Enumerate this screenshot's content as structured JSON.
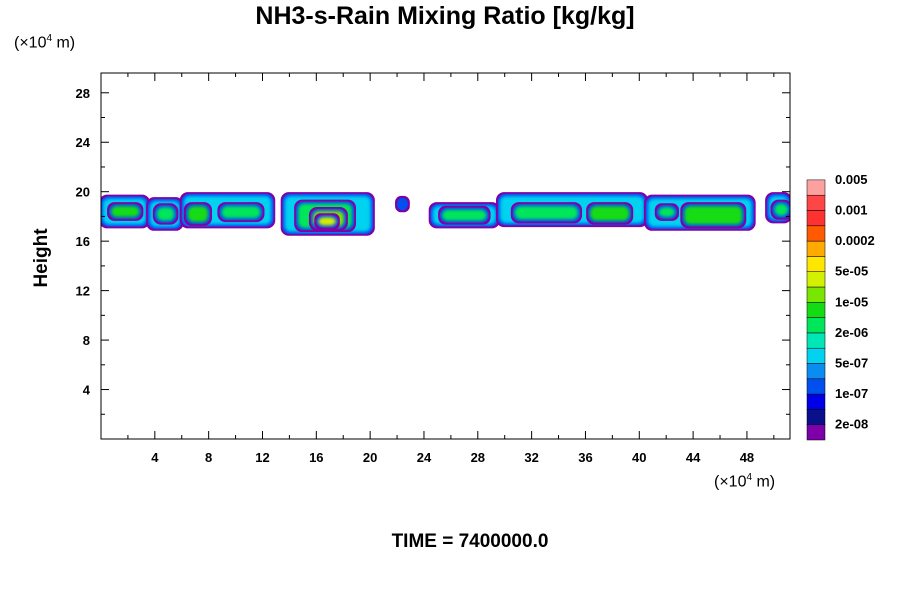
{
  "chart_data": {
    "type": "heatmap",
    "title": "NH3-s-Rain Mixing Ratio [kg/kg]",
    "ylabel": "Height",
    "x_unit_label": {
      "prefix": "(×10",
      "exp": "4",
      "suffix": " m)"
    },
    "y_unit_label": {
      "prefix": "(×10",
      "exp": "4",
      "suffix": " m)"
    },
    "xlim": [
      0,
      51.2
    ],
    "ylim": [
      0,
      29.6
    ],
    "x_ticks": [
      4,
      8,
      12,
      16,
      20,
      24,
      28,
      32,
      36,
      40,
      44,
      48
    ],
    "y_ticks": [
      4,
      8,
      12,
      16,
      20,
      24,
      28
    ],
    "footer": "TIME = 7400000.0",
    "colorbar": {
      "colors": [
        "#7d00a8",
        "#0a0f8c",
        "#0000e6",
        "#0050f0",
        "#0a8cf0",
        "#00d2f0",
        "#00e6b4",
        "#00e65a",
        "#14dc14",
        "#78e600",
        "#d2f000",
        "#ffe600",
        "#ffaa00",
        "#ff5a00",
        "#ff3232",
        "#ff4646",
        "#ffa0a0"
      ],
      "labels": [
        "2e-08",
        "1e-07",
        "5e-07",
        "2e-06",
        "1e-05",
        "5e-05",
        "0.0002",
        "0.001",
        "0.005"
      ]
    },
    "regions": [
      {
        "x0": 0,
        "x1": 3.5,
        "y0": 17.2,
        "y1": 19.6,
        "level": 5
      },
      {
        "x0": 0.6,
        "x1": 3.0,
        "y0": 17.8,
        "y1": 19.0,
        "level": 8
      },
      {
        "x0": 3.5,
        "x1": 6.0,
        "y0": 17.0,
        "y1": 19.4,
        "level": 5
      },
      {
        "x0": 4.0,
        "x1": 5.6,
        "y0": 17.5,
        "y1": 18.9,
        "level": 7
      },
      {
        "x0": 6.0,
        "x1": 12.8,
        "y0": 17.2,
        "y1": 19.8,
        "level": 5
      },
      {
        "x0": 6.3,
        "x1": 8.1,
        "y0": 17.4,
        "y1": 19.0,
        "level": 8
      },
      {
        "x0": 8.8,
        "x1": 12.0,
        "y0": 17.7,
        "y1": 19.0,
        "level": 7
      },
      {
        "x0": 13.5,
        "x1": 20.2,
        "y0": 16.6,
        "y1": 19.8,
        "level": 5
      },
      {
        "x0": 14.5,
        "x1": 18.8,
        "y0": 16.9,
        "y1": 19.2,
        "level": 7
      },
      {
        "x0": 15.6,
        "x1": 18.2,
        "y0": 17.0,
        "y1": 18.6,
        "level": 9
      },
      {
        "x0": 16.0,
        "x1": 17.6,
        "y0": 17.1,
        "y1": 18.1,
        "level": 10
      },
      {
        "x0": 22.0,
        "x1": 22.8,
        "y0": 18.5,
        "y1": 19.5,
        "level": 3
      },
      {
        "x0": 24.5,
        "x1": 29.5,
        "y0": 17.2,
        "y1": 19.0,
        "level": 5
      },
      {
        "x0": 25.2,
        "x1": 28.8,
        "y0": 17.5,
        "y1": 18.7,
        "level": 7
      },
      {
        "x0": 29.5,
        "x1": 40.5,
        "y0": 17.3,
        "y1": 19.8,
        "level": 5
      },
      {
        "x0": 30.6,
        "x1": 35.6,
        "y0": 17.6,
        "y1": 19.0,
        "level": 7
      },
      {
        "x0": 36.2,
        "x1": 39.4,
        "y0": 17.5,
        "y1": 19.0,
        "level": 8
      },
      {
        "x0": 40.5,
        "x1": 48.5,
        "y0": 17.0,
        "y1": 19.6,
        "level": 5
      },
      {
        "x0": 41.3,
        "x1": 42.8,
        "y0": 17.8,
        "y1": 18.9,
        "level": 7
      },
      {
        "x0": 43.2,
        "x1": 47.8,
        "y0": 17.2,
        "y1": 19.0,
        "level": 8
      },
      {
        "x0": 49.5,
        "x1": 51.2,
        "y0": 17.6,
        "y1": 19.8,
        "level": 5
      },
      {
        "x0": 49.9,
        "x1": 51.2,
        "y0": 17.9,
        "y1": 19.2,
        "level": 7
      }
    ]
  }
}
